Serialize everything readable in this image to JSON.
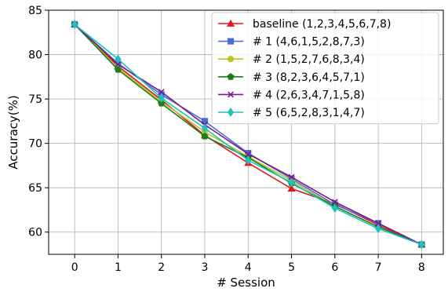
{
  "chart_data": {
    "type": "line",
    "xlabel": "# Session",
    "ylabel": "Accuracy(%)",
    "xlim": [
      -0.6,
      8.5
    ],
    "ylim": [
      57.5,
      85
    ],
    "xticks": [
      0,
      1,
      2,
      3,
      4,
      5,
      6,
      7,
      8
    ],
    "yticks": [
      60,
      65,
      70,
      75,
      80,
      85
    ],
    "grid": true,
    "legend_position": "top-right",
    "x": [
      0,
      1,
      2,
      3,
      4,
      5,
      6,
      7,
      8
    ],
    "series": [
      {
        "name": "baseline (1,2,3,4,5,6,7,8)",
        "color": "#e8161b",
        "marker": "triangle",
        "values": [
          83.4,
          78.7,
          74.9,
          70.9,
          67.8,
          64.9,
          63.2,
          60.8,
          58.6
        ]
      },
      {
        "name": "# 1 (4,6,1,5,2,8,7,3)",
        "color": "#4a6fd8",
        "marker": "square",
        "values": [
          83.4,
          79.0,
          75.5,
          72.5,
          68.9,
          66.0,
          63.1,
          61.0,
          58.6
        ]
      },
      {
        "name": "# 2 (1,5,2,7,6,8,3,4)",
        "color": "#c2c21a",
        "marker": "circle",
        "values": [
          83.4,
          78.5,
          74.7,
          71.3,
          68.5,
          65.8,
          62.9,
          60.6,
          58.6
        ]
      },
      {
        "name": "# 3 (8,2,3,6,4,5,7,1)",
        "color": "#1a7f1a",
        "marker": "pentagon",
        "values": [
          83.4,
          78.3,
          74.5,
          70.8,
          68.4,
          65.5,
          62.9,
          60.6,
          58.6
        ]
      },
      {
        "name": "# 4 (2,6,3,4,7,1,5,8)",
        "color": "#7f1a8c",
        "marker": "x",
        "values": [
          83.4,
          78.9,
          75.8,
          72.1,
          68.8,
          66.2,
          63.4,
          61.0,
          58.6
        ]
      },
      {
        "name": "# 5 (6,5,2,8,3,1,4,7)",
        "color": "#1ac2c2",
        "marker": "diamond",
        "values": [
          83.4,
          79.5,
          75.1,
          71.7,
          68.1,
          65.6,
          62.7,
          60.4,
          58.6
        ]
      }
    ]
  }
}
